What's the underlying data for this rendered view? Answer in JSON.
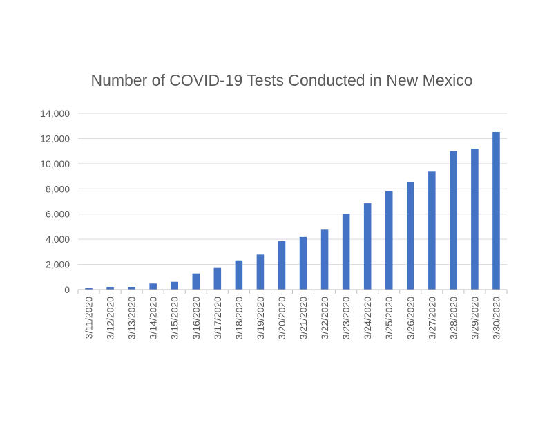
{
  "chart_data": {
    "type": "bar",
    "title": "Number of COVID-19 Tests Conducted in New Mexico",
    "xlabel": "",
    "ylabel": "",
    "ylim": [
      0,
      14000
    ],
    "y_ticks": [
      0,
      2000,
      4000,
      6000,
      8000,
      10000,
      12000,
      14000
    ],
    "y_tick_labels": [
      "0",
      "2,000",
      "4,000",
      "6,000",
      "8,000",
      "10,000",
      "12,000",
      "14,000"
    ],
    "grid": true,
    "legend": "none",
    "bar_color": "#4472c4",
    "categories": [
      "3/11/2020",
      "3/12/2020",
      "3/13/2020",
      "3/14/2020",
      "3/15/2020",
      "3/16/2020",
      "3/17/2020",
      "3/18/2020",
      "3/19/2020",
      "3/20/2020",
      "3/21/2020",
      "3/22/2020",
      "3/23/2020",
      "3/24/2020",
      "3/25/2020",
      "3/26/2020",
      "3/27/2020",
      "3/28/2020",
      "3/29/2020",
      "3/30/2020"
    ],
    "values": [
      150,
      220,
      220,
      480,
      620,
      1280,
      1720,
      2320,
      2780,
      3850,
      4180,
      4760,
      6020,
      6860,
      7800,
      8520,
      9370,
      11000,
      11200,
      12520
    ]
  }
}
